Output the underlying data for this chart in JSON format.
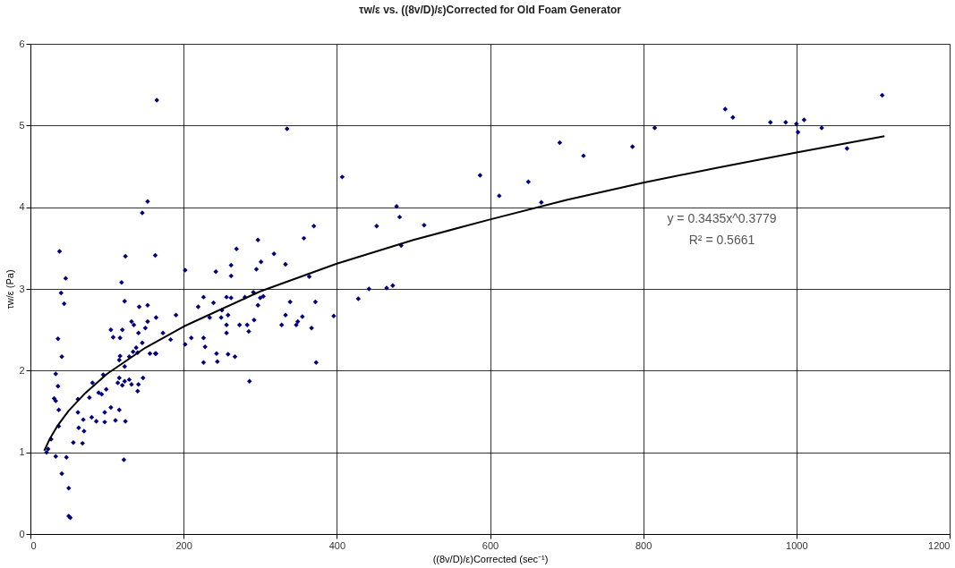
{
  "chart_data": {
    "type": "scatter",
    "title": "τw/ε vs. ((8v/D)/ε)Corrected for Old Foam Generator",
    "xlabel": "((8v/D)/ε)Corrected (sec⁻¹)",
    "ylabel": "τw/ε (Pa)",
    "xlim": [
      0,
      1200
    ],
    "xticks": [
      0,
      200,
      400,
      600,
      800,
      1000,
      1200
    ],
    "ylim": [
      0,
      6
    ],
    "yticks": [
      0,
      1,
      2,
      3,
      4,
      5,
      6
    ],
    "grid": true,
    "annotations": [
      "y = 0.3435x^0.3779",
      "R² = 0.5661"
    ],
    "series": [
      {
        "color": "#000080",
        "marker": "diamond",
        "x": [
          165,
          153,
          146,
          38,
          124,
          163,
          46,
          119,
          40,
          44,
          123,
          202,
          242,
          262,
          262,
          269,
          297,
          301,
          295,
          318,
          333,
          357,
          36,
          41,
          33,
          36,
          31,
          33,
          37,
          37,
          23,
          27,
          21,
          33,
          47,
          41,
          50,
          50,
          52,
          122,
          56,
          68,
          63,
          70,
          62,
          69,
          80,
          86,
          97,
          97,
          62,
          77,
          81,
          89,
          93,
          99,
          95,
          105,
          116,
          111,
          124,
          114,
          116,
          120,
          123,
          129,
          132,
          140,
          141,
          147,
          116,
          117,
          123,
          129,
          134,
          140,
          138,
          146,
          156,
          163,
          164,
          108,
          105,
          117,
          120,
          132,
          135,
          141,
          150,
          153,
          142,
          153,
          164,
          173,
          183,
          190,
          202,
          210,
          219,
          226,
          226,
          228,
          226,
          234,
          239,
          243,
          244,
          249,
          250,
          256,
          256,
          256,
          258,
          262,
          258,
          267,
          273,
          280,
          283,
          285,
          286,
          291,
          292,
          297,
          300,
          304,
          328,
          333,
          339,
          347,
          349,
          355,
          335,
          407,
          478,
          482,
          452,
          514,
          484,
          587,
          612,
          650,
          691,
          722,
          667,
          442,
          465,
          473,
          428,
          396,
          373,
          367,
          372,
          364,
          370,
          786,
          815,
          907,
          917,
          966,
          986,
          1000,
          1002,
          1010,
          1033,
          1066,
          1112
        ],
        "values": [
          5.31,
          4.07,
          3.93,
          3.46,
          3.4,
          3.41,
          3.13,
          3.08,
          2.95,
          2.82,
          2.85,
          3.23,
          3.21,
          3.29,
          3.16,
          3.49,
          3.6,
          3.33,
          3.24,
          3.43,
          3.3,
          3.62,
          2.39,
          2.17,
          1.96,
          1.81,
          1.66,
          1.63,
          1.52,
          1.32,
          1.04,
          1.16,
          1.0,
          0.95,
          0.94,
          0.74,
          0.56,
          0.22,
          0.2,
          0.91,
          1.12,
          1.11,
          1.3,
          1.26,
          1.49,
          1.4,
          1.43,
          1.38,
          1.37,
          1.49,
          1.65,
          1.67,
          1.85,
          1.73,
          1.71,
          1.77,
          1.95,
          1.55,
          1.52,
          1.39,
          1.38,
          1.85,
          1.91,
          1.82,
          1.87,
          1.89,
          1.83,
          1.75,
          1.83,
          1.91,
          2.13,
          2.18,
          2.05,
          2.17,
          2.23,
          2.22,
          2.28,
          2.34,
          2.21,
          2.21,
          2.21,
          2.41,
          2.5,
          2.4,
          2.5,
          2.6,
          2.56,
          2.46,
          2.52,
          2.6,
          2.78,
          2.8,
          2.65,
          2.46,
          2.38,
          2.68,
          2.32,
          2.4,
          2.78,
          2.9,
          2.4,
          2.29,
          2.1,
          2.65,
          2.83,
          2.21,
          2.11,
          2.65,
          2.74,
          2.9,
          2.56,
          2.46,
          2.68,
          2.89,
          2.2,
          2.17,
          2.56,
          2.9,
          2.56,
          2.48,
          1.87,
          2.96,
          2.62,
          2.8,
          2.89,
          2.91,
          2.56,
          2.68,
          2.84,
          2.56,
          2.6,
          2.66,
          4.96,
          4.37,
          4.01,
          3.88,
          3.77,
          3.78,
          3.53,
          4.39,
          4.14,
          4.31,
          4.79,
          4.63,
          4.06,
          3.0,
          3.01,
          3.04,
          2.88,
          2.67,
          2.1,
          2.52,
          2.84,
          3.15,
          3.77,
          4.74,
          4.97,
          5.2,
          5.1,
          5.04,
          5.04,
          5.02,
          4.92,
          5.07,
          4.97,
          4.72,
          5.37
        ]
      },
      {
        "type": "line",
        "color": "#000000",
        "marker": "none",
        "line_style": "solid",
        "x": [
          18,
          25,
          35,
          50,
          70,
          100,
          150,
          200,
          300,
          400,
          500,
          600,
          700,
          800,
          900,
          1000,
          1115
        ],
        "values": [
          1.02,
          1.16,
          1.32,
          1.51,
          1.71,
          1.96,
          2.28,
          2.54,
          2.97,
          3.31,
          3.6,
          3.85,
          4.09,
          4.3,
          4.49,
          4.67,
          4.87
        ]
      }
    ]
  }
}
